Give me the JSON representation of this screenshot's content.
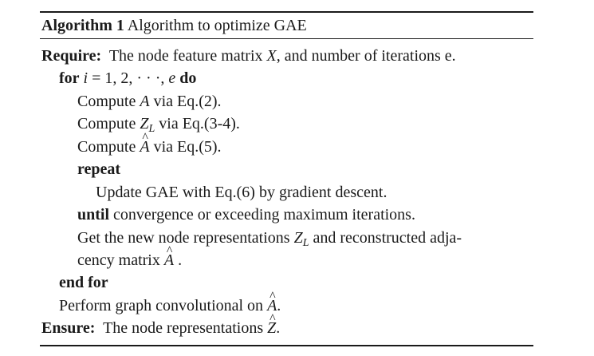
{
  "algorithm": {
    "caption_label": "Algorithm 1",
    "caption_title": "Algorithm to optimize GAE",
    "require_kw": "Require:",
    "require_text_a": "The node feature matrix ",
    "require_var": "X",
    "require_text_b": ", and number of iterations e.",
    "for_kw": "for",
    "for_var": "i",
    "for_range": " = 1, 2, · · ·, ",
    "for_end_var": "e",
    "do_kw": "do",
    "compute_a_text": "Compute ",
    "compute_a_var": "A",
    "compute_a_ref": " via Eq.(2).",
    "compute_z_text": "Compute ",
    "compute_z_var": "Z",
    "compute_z_sub": "L",
    "compute_z_ref": " via Eq.(3-4).",
    "compute_ahat_text": "Compute ",
    "compute_ahat_var": "A",
    "compute_ahat_ref": " via Eq.(5).",
    "repeat_kw": "repeat",
    "update_text": "Update GAE with Eq.(6) by gradient descent.",
    "until_kw": "until",
    "until_text": " convergence or exceeding maximum iterations.",
    "get_text_a": "Get the new node representations ",
    "get_var": "Z",
    "get_sub": "L",
    "get_text_b": " and reconstructed adja-",
    "get_text_c": "cency matrix ",
    "get_hat_var": "A",
    "get_text_d": " .",
    "end_for_kw": "end for",
    "perform_text": "Perform graph convolutional on ",
    "perform_var": "A",
    "perform_end": ".",
    "ensure_kw": "Ensure:",
    "ensure_text": "The node representations ",
    "ensure_var": "Z",
    "ensure_end": "."
  }
}
